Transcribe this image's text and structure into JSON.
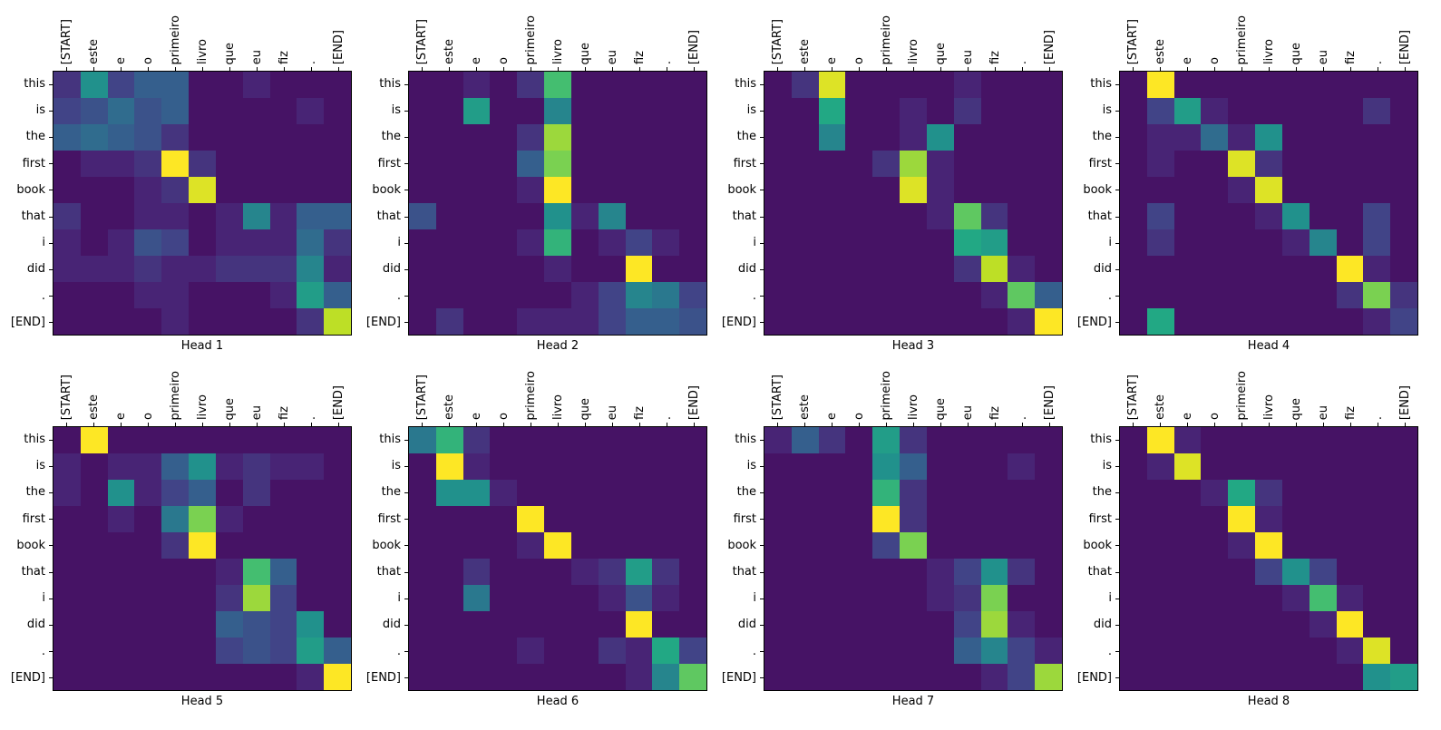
{
  "figure": {
    "background_color": "#ffffff",
    "text_color": "#000000"
  },
  "chart_data": {
    "type": "heatmap",
    "colormap": "viridis",
    "vmin": 0,
    "vmax": 1,
    "grid": false,
    "x_axis_position": "top",
    "x_labels": [
      "[START]",
      "este",
      "e",
      "o",
      "primeiro",
      "livro",
      "que",
      "eu",
      "fiz",
      ".",
      "[END]"
    ],
    "y_labels": [
      "this",
      "is",
      "the",
      "first",
      "book",
      "that",
      "i",
      "did",
      ".",
      "[END]"
    ],
    "heads": [
      {
        "title": "Head 1",
        "values": [
          [
            0.15,
            0.5,
            0.2,
            0.3,
            0.3,
            0.05,
            0.05,
            0.1,
            0.05,
            0.05,
            0.05
          ],
          [
            0.2,
            0.25,
            0.35,
            0.25,
            0.3,
            0.05,
            0.05,
            0.05,
            0.05,
            0.1,
            0.05
          ],
          [
            0.3,
            0.35,
            0.3,
            0.25,
            0.15,
            0.05,
            0.05,
            0.05,
            0.05,
            0.05,
            0.05
          ],
          [
            0.05,
            0.1,
            0.1,
            0.15,
            1.0,
            0.15,
            0.05,
            0.05,
            0.05,
            0.05,
            0.05
          ],
          [
            0.05,
            0.05,
            0.05,
            0.1,
            0.15,
            0.95,
            0.05,
            0.05,
            0.05,
            0.05,
            0.05
          ],
          [
            0.15,
            0.05,
            0.05,
            0.1,
            0.1,
            0.05,
            0.1,
            0.45,
            0.1,
            0.3,
            0.3
          ],
          [
            0.1,
            0.05,
            0.1,
            0.25,
            0.2,
            0.05,
            0.1,
            0.1,
            0.1,
            0.35,
            0.15
          ],
          [
            0.1,
            0.1,
            0.1,
            0.15,
            0.1,
            0.1,
            0.15,
            0.15,
            0.15,
            0.45,
            0.1
          ],
          [
            0.05,
            0.05,
            0.05,
            0.1,
            0.1,
            0.05,
            0.05,
            0.05,
            0.1,
            0.55,
            0.3
          ],
          [
            0.05,
            0.05,
            0.05,
            0.05,
            0.1,
            0.05,
            0.05,
            0.05,
            0.05,
            0.15,
            0.9
          ]
        ]
      },
      {
        "title": "Head 2",
        "values": [
          [
            0.05,
            0.05,
            0.1,
            0.05,
            0.15,
            0.7,
            0.05,
            0.05,
            0.05,
            0.05,
            0.05
          ],
          [
            0.05,
            0.05,
            0.55,
            0.05,
            0.05,
            0.45,
            0.05,
            0.05,
            0.05,
            0.05,
            0.05
          ],
          [
            0.05,
            0.05,
            0.05,
            0.05,
            0.15,
            0.85,
            0.05,
            0.05,
            0.05,
            0.05,
            0.05
          ],
          [
            0.05,
            0.05,
            0.05,
            0.05,
            0.3,
            0.8,
            0.05,
            0.05,
            0.05,
            0.05,
            0.05
          ],
          [
            0.05,
            0.05,
            0.05,
            0.05,
            0.1,
            1.0,
            0.05,
            0.05,
            0.05,
            0.05,
            0.05
          ],
          [
            0.25,
            0.05,
            0.05,
            0.05,
            0.05,
            0.5,
            0.1,
            0.45,
            0.05,
            0.05,
            0.05
          ],
          [
            0.05,
            0.05,
            0.05,
            0.05,
            0.1,
            0.65,
            0.05,
            0.1,
            0.2,
            0.1,
            0.05
          ],
          [
            0.05,
            0.05,
            0.05,
            0.05,
            0.05,
            0.1,
            0.05,
            0.05,
            1.0,
            0.05,
            0.05
          ],
          [
            0.05,
            0.05,
            0.05,
            0.05,
            0.05,
            0.05,
            0.1,
            0.2,
            0.45,
            0.4,
            0.2
          ],
          [
            0.05,
            0.15,
            0.05,
            0.05,
            0.1,
            0.1,
            0.1,
            0.2,
            0.3,
            0.3,
            0.25
          ]
        ]
      },
      {
        "title": "Head 3",
        "values": [
          [
            0.05,
            0.15,
            0.95,
            0.05,
            0.05,
            0.05,
            0.05,
            0.1,
            0.05,
            0.05,
            0.05
          ],
          [
            0.05,
            0.05,
            0.6,
            0.05,
            0.05,
            0.1,
            0.05,
            0.15,
            0.05,
            0.05,
            0.05
          ],
          [
            0.05,
            0.05,
            0.45,
            0.05,
            0.05,
            0.1,
            0.5,
            0.05,
            0.05,
            0.05,
            0.05
          ],
          [
            0.05,
            0.05,
            0.05,
            0.05,
            0.15,
            0.85,
            0.1,
            0.05,
            0.05,
            0.05,
            0.05
          ],
          [
            0.05,
            0.05,
            0.05,
            0.05,
            0.05,
            0.95,
            0.1,
            0.05,
            0.05,
            0.05,
            0.05
          ],
          [
            0.05,
            0.05,
            0.05,
            0.05,
            0.05,
            0.05,
            0.1,
            0.75,
            0.15,
            0.05,
            0.05
          ],
          [
            0.05,
            0.05,
            0.05,
            0.05,
            0.05,
            0.05,
            0.05,
            0.6,
            0.55,
            0.05,
            0.05
          ],
          [
            0.05,
            0.05,
            0.05,
            0.05,
            0.05,
            0.05,
            0.05,
            0.15,
            0.9,
            0.1,
            0.05
          ],
          [
            0.05,
            0.05,
            0.05,
            0.05,
            0.05,
            0.05,
            0.05,
            0.05,
            0.1,
            0.75,
            0.3
          ],
          [
            0.05,
            0.05,
            0.05,
            0.05,
            0.05,
            0.05,
            0.05,
            0.05,
            0.05,
            0.1,
            1.0
          ]
        ]
      },
      {
        "title": "Head 4",
        "values": [
          [
            0.05,
            1.0,
            0.05,
            0.05,
            0.05,
            0.05,
            0.05,
            0.05,
            0.05,
            0.05,
            0.05
          ],
          [
            0.05,
            0.2,
            0.55,
            0.1,
            0.05,
            0.05,
            0.05,
            0.05,
            0.05,
            0.15,
            0.05
          ],
          [
            0.05,
            0.1,
            0.1,
            0.35,
            0.1,
            0.5,
            0.05,
            0.05,
            0.05,
            0.05,
            0.05
          ],
          [
            0.05,
            0.1,
            0.05,
            0.05,
            0.95,
            0.15,
            0.05,
            0.05,
            0.05,
            0.05,
            0.05
          ],
          [
            0.05,
            0.05,
            0.05,
            0.05,
            0.1,
            0.95,
            0.05,
            0.05,
            0.05,
            0.05,
            0.05
          ],
          [
            0.05,
            0.2,
            0.05,
            0.05,
            0.05,
            0.1,
            0.5,
            0.05,
            0.05,
            0.2,
            0.05
          ],
          [
            0.05,
            0.15,
            0.05,
            0.05,
            0.05,
            0.05,
            0.1,
            0.45,
            0.05,
            0.2,
            0.05
          ],
          [
            0.05,
            0.05,
            0.05,
            0.05,
            0.05,
            0.05,
            0.05,
            0.05,
            1.0,
            0.1,
            0.05
          ],
          [
            0.05,
            0.05,
            0.05,
            0.05,
            0.05,
            0.05,
            0.05,
            0.05,
            0.15,
            0.8,
            0.15
          ],
          [
            0.05,
            0.6,
            0.05,
            0.05,
            0.05,
            0.05,
            0.05,
            0.05,
            0.05,
            0.1,
            0.2
          ]
        ]
      },
      {
        "title": "Head 5",
        "values": [
          [
            0.05,
            1.0,
            0.05,
            0.05,
            0.05,
            0.05,
            0.05,
            0.05,
            0.05,
            0.05,
            0.05
          ],
          [
            0.1,
            0.05,
            0.1,
            0.1,
            0.3,
            0.5,
            0.1,
            0.15,
            0.1,
            0.1,
            0.05
          ],
          [
            0.1,
            0.05,
            0.5,
            0.1,
            0.2,
            0.3,
            0.05,
            0.15,
            0.05,
            0.05,
            0.05
          ],
          [
            0.05,
            0.05,
            0.1,
            0.05,
            0.4,
            0.8,
            0.1,
            0.05,
            0.05,
            0.05,
            0.05
          ],
          [
            0.05,
            0.05,
            0.05,
            0.05,
            0.15,
            1.0,
            0.05,
            0.05,
            0.05,
            0.05,
            0.05
          ],
          [
            0.05,
            0.05,
            0.05,
            0.05,
            0.05,
            0.05,
            0.1,
            0.7,
            0.3,
            0.05,
            0.05
          ],
          [
            0.05,
            0.05,
            0.05,
            0.05,
            0.05,
            0.05,
            0.15,
            0.85,
            0.2,
            0.05,
            0.05
          ],
          [
            0.05,
            0.05,
            0.05,
            0.05,
            0.05,
            0.05,
            0.3,
            0.25,
            0.2,
            0.5,
            0.05
          ],
          [
            0.05,
            0.05,
            0.05,
            0.05,
            0.05,
            0.05,
            0.2,
            0.25,
            0.2,
            0.55,
            0.3
          ],
          [
            0.05,
            0.05,
            0.05,
            0.05,
            0.05,
            0.05,
            0.05,
            0.05,
            0.05,
            0.1,
            1.0
          ]
        ]
      },
      {
        "title": "Head 6",
        "values": [
          [
            0.4,
            0.65,
            0.15,
            0.05,
            0.05,
            0.05,
            0.05,
            0.05,
            0.05,
            0.05,
            0.05
          ],
          [
            0.05,
            1.0,
            0.1,
            0.05,
            0.05,
            0.05,
            0.05,
            0.05,
            0.05,
            0.05,
            0.05
          ],
          [
            0.05,
            0.5,
            0.5,
            0.1,
            0.05,
            0.05,
            0.05,
            0.05,
            0.05,
            0.05,
            0.05
          ],
          [
            0.05,
            0.05,
            0.05,
            0.05,
            1.0,
            0.05,
            0.05,
            0.05,
            0.05,
            0.05,
            0.05
          ],
          [
            0.05,
            0.05,
            0.05,
            0.05,
            0.1,
            1.0,
            0.05,
            0.05,
            0.05,
            0.05,
            0.05
          ],
          [
            0.05,
            0.05,
            0.15,
            0.05,
            0.05,
            0.05,
            0.1,
            0.15,
            0.55,
            0.15,
            0.05
          ],
          [
            0.05,
            0.05,
            0.4,
            0.05,
            0.05,
            0.05,
            0.05,
            0.1,
            0.25,
            0.1,
            0.05
          ],
          [
            0.05,
            0.05,
            0.05,
            0.05,
            0.05,
            0.05,
            0.05,
            0.05,
            1.0,
            0.05,
            0.05
          ],
          [
            0.05,
            0.05,
            0.05,
            0.05,
            0.1,
            0.05,
            0.05,
            0.15,
            0.1,
            0.6,
            0.2
          ],
          [
            0.05,
            0.05,
            0.05,
            0.05,
            0.05,
            0.05,
            0.05,
            0.05,
            0.1,
            0.45,
            0.75
          ]
        ]
      },
      {
        "title": "Head 7",
        "values": [
          [
            0.1,
            0.3,
            0.15,
            0.05,
            0.55,
            0.15,
            0.05,
            0.05,
            0.05,
            0.05,
            0.05
          ],
          [
            0.05,
            0.05,
            0.05,
            0.05,
            0.5,
            0.3,
            0.05,
            0.05,
            0.05,
            0.1,
            0.05
          ],
          [
            0.05,
            0.05,
            0.05,
            0.05,
            0.65,
            0.15,
            0.05,
            0.05,
            0.05,
            0.05,
            0.05
          ],
          [
            0.05,
            0.05,
            0.05,
            0.05,
            1.0,
            0.15,
            0.05,
            0.05,
            0.05,
            0.05,
            0.05
          ],
          [
            0.05,
            0.05,
            0.05,
            0.05,
            0.2,
            0.8,
            0.05,
            0.05,
            0.05,
            0.05,
            0.05
          ],
          [
            0.05,
            0.05,
            0.05,
            0.05,
            0.05,
            0.05,
            0.1,
            0.2,
            0.5,
            0.15,
            0.05
          ],
          [
            0.05,
            0.05,
            0.05,
            0.05,
            0.05,
            0.05,
            0.1,
            0.15,
            0.8,
            0.05,
            0.05
          ],
          [
            0.05,
            0.05,
            0.05,
            0.05,
            0.05,
            0.05,
            0.05,
            0.2,
            0.85,
            0.1,
            0.05
          ],
          [
            0.05,
            0.05,
            0.05,
            0.05,
            0.05,
            0.05,
            0.05,
            0.3,
            0.45,
            0.2,
            0.1
          ],
          [
            0.05,
            0.05,
            0.05,
            0.05,
            0.05,
            0.05,
            0.05,
            0.05,
            0.1,
            0.2,
            0.85
          ]
        ]
      },
      {
        "title": "Head 8",
        "values": [
          [
            0.05,
            1.0,
            0.1,
            0.05,
            0.05,
            0.05,
            0.05,
            0.05,
            0.05,
            0.05,
            0.05
          ],
          [
            0.05,
            0.1,
            0.95,
            0.05,
            0.05,
            0.05,
            0.05,
            0.05,
            0.05,
            0.05,
            0.05
          ],
          [
            0.05,
            0.05,
            0.05,
            0.1,
            0.6,
            0.15,
            0.05,
            0.05,
            0.05,
            0.05,
            0.05
          ],
          [
            0.05,
            0.05,
            0.05,
            0.05,
            1.0,
            0.1,
            0.05,
            0.05,
            0.05,
            0.05,
            0.05
          ],
          [
            0.05,
            0.05,
            0.05,
            0.05,
            0.1,
            1.0,
            0.05,
            0.05,
            0.05,
            0.05,
            0.05
          ],
          [
            0.05,
            0.05,
            0.05,
            0.05,
            0.05,
            0.2,
            0.5,
            0.2,
            0.05,
            0.05,
            0.05
          ],
          [
            0.05,
            0.05,
            0.05,
            0.05,
            0.05,
            0.05,
            0.1,
            0.7,
            0.1,
            0.05,
            0.05
          ],
          [
            0.05,
            0.05,
            0.05,
            0.05,
            0.05,
            0.05,
            0.05,
            0.1,
            1.0,
            0.05,
            0.05
          ],
          [
            0.05,
            0.05,
            0.05,
            0.05,
            0.05,
            0.05,
            0.05,
            0.05,
            0.1,
            0.95,
            0.05
          ],
          [
            0.05,
            0.05,
            0.05,
            0.05,
            0.05,
            0.05,
            0.05,
            0.05,
            0.05,
            0.5,
            0.55
          ]
        ]
      }
    ]
  }
}
